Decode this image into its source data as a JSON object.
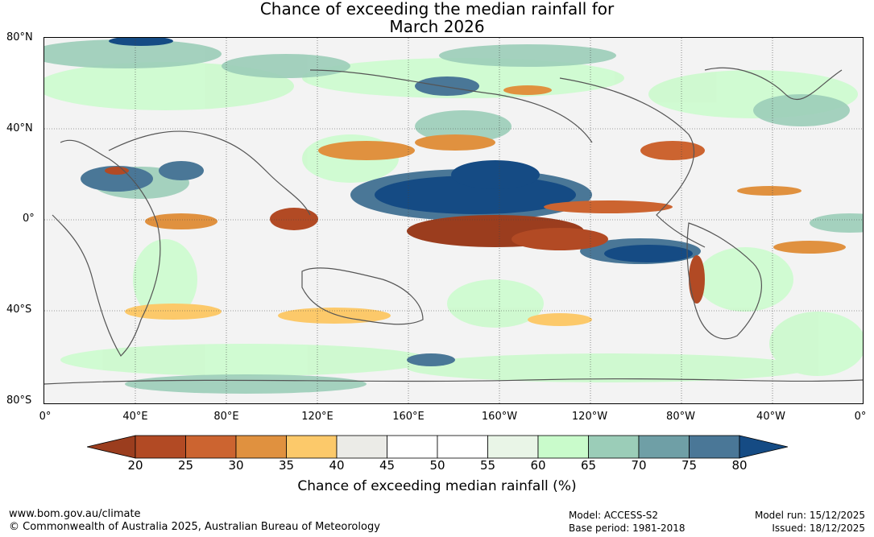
{
  "title": {
    "line1": "Chance of exceeding the median rainfall for",
    "line2": "March 2026"
  },
  "map": {
    "lat_labels": [
      "80°N",
      "40°N",
      "0°",
      "40°S",
      "80°S"
    ],
    "lon_labels": [
      "0°",
      "40°E",
      "80°E",
      "120°E",
      "160°E",
      "160°W",
      "120°W",
      "80°W",
      "40°W",
      "0°"
    ]
  },
  "colorbar": {
    "ticks": [
      "20",
      "25",
      "30",
      "35",
      "40",
      "45",
      "50",
      "55",
      "60",
      "65",
      "70",
      "75",
      "80"
    ],
    "colors": [
      "#9b3d1e",
      "#b24a24",
      "#cc6430",
      "#e0913f",
      "#fcc96a",
      "#ebebe7",
      "#ffffff",
      "#ffffff",
      "#e9f5e7",
      "#c9fbcb",
      "#9bcdb8",
      "#6f9fa6",
      "#4a7797",
      "#154b84"
    ],
    "label": "Chance of exceeding median rainfall (%)"
  },
  "footer": {
    "url": "www.bom.gov.au/climate",
    "copyright": "© Commonwealth of Australia 2025, Australian Bureau of Meteorology",
    "model": "Model: ACCESS-S2",
    "base_period": "Base period: 1981-2018",
    "model_run": "Model run: 15/12/2025",
    "issued": "Issued: 18/12/2025"
  }
}
